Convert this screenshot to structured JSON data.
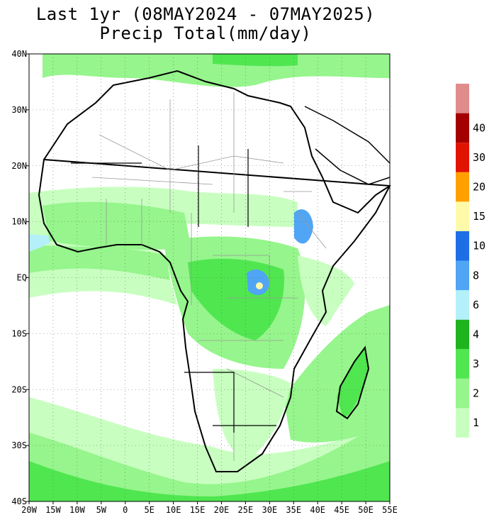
{
  "title_line1": "Last 1yr (08MAY2024 - 07MAY2025)",
  "title_line2": "Precip Total(mm/day)",
  "lat_labels": [
    "40N",
    "30N",
    "20N",
    "10N",
    "EQ",
    "10S",
    "20S",
    "30S",
    "40S"
  ],
  "lon_labels": [
    "20W",
    "15W",
    "10W",
    "5W",
    "0",
    "5E",
    "10E",
    "15E",
    "20E",
    "25E",
    "30E",
    "35E",
    "40E",
    "45E",
    "50E",
    "55E"
  ],
  "colorbar": {
    "labels": [
      "1",
      "2",
      "3",
      "4",
      "6",
      "8",
      "10",
      "15",
      "20",
      "30",
      "40"
    ],
    "colors": [
      "#c8ffc0",
      "#96f58c",
      "#50e650",
      "#1eb41e",
      "#b4f0fa",
      "#50a5f5",
      "#1e6ee6",
      "#fffaaa",
      "#ffa000",
      "#e11400",
      "#a50000",
      "#e18c8c"
    ]
  },
  "map_colors": {
    "land": "#ffffff",
    "ocean": "#ffffff",
    "coast": "#000000",
    "border": "#999999"
  }
}
